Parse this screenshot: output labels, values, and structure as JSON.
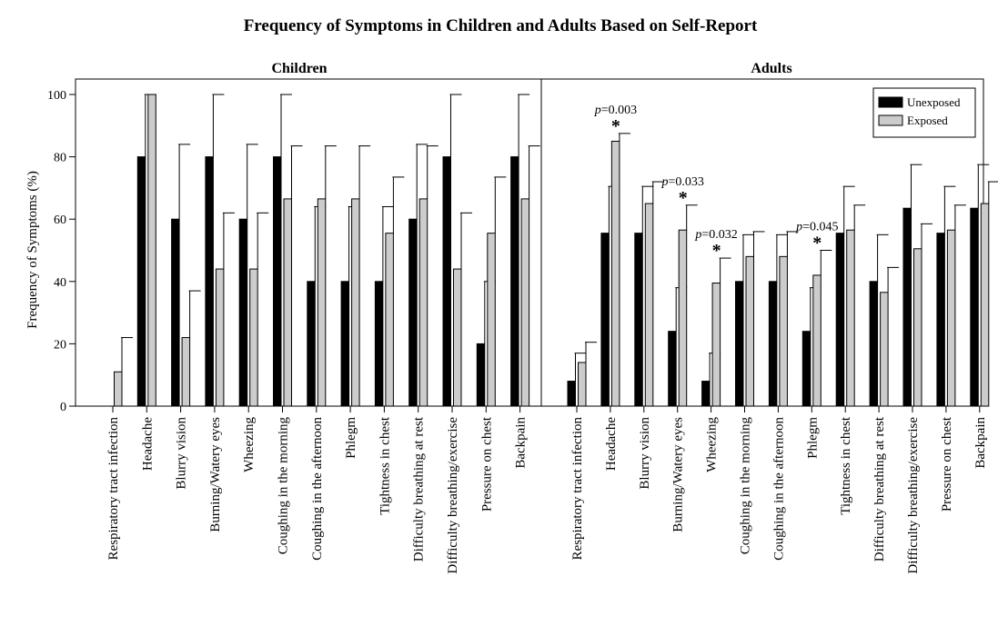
{
  "chart_data": {
    "type": "bar",
    "title": "Frequency of Symptoms in Children and Adults Based on Self-Report",
    "ylabel": "Frequency of Symptoms (%)",
    "ylim": [
      0,
      100
    ],
    "yticks": [
      "0",
      "20",
      "40",
      "60",
      "80",
      "100"
    ],
    "legend": {
      "placement": "top-right",
      "entries": [
        "Unexposed",
        "Exposed"
      ]
    },
    "colors": {
      "unexposed": "#000000",
      "exposed": "#cccccc"
    },
    "categories": [
      "Respiratory tract infection",
      "Headache",
      "Blurry vision",
      "Burning/Watery eyes",
      "Wheezing",
      "Coughing in the morning",
      "Coughing in the afternoon",
      "Phlegm",
      "Tightness in chest",
      "Difficulty breathing at rest",
      "Difficulty breathing/exercise",
      "Pressure on chest",
      "Backpain"
    ],
    "panels": [
      {
        "title": "Children",
        "series": [
          {
            "name": "Unexposed",
            "values": [
              0,
              80,
              60,
              80,
              60,
              80,
              40,
              40,
              40,
              60,
              80,
              20,
              80
            ],
            "errors": [
              0,
              100,
              84,
              100,
              84,
              100,
              64,
              64,
              64,
              84,
              100,
              40,
              100
            ]
          },
          {
            "name": "Exposed",
            "values": [
              11,
              100,
              22,
              44,
              44,
              66.5,
              66.5,
              66.5,
              55.5,
              66.5,
              44,
              55.5,
              66.5
            ],
            "errors": [
              22,
              100,
              37,
              62,
              62,
              83.5,
              83.5,
              83.5,
              73.5,
              83.5,
              62,
              73.5,
              83.5
            ]
          }
        ],
        "annotations": []
      },
      {
        "title": "Adults",
        "series": [
          {
            "name": "Unexposed",
            "values": [
              8,
              55.5,
              55.5,
              24,
              8,
              40,
              40,
              24,
              55.5,
              40,
              63.5,
              55.5,
              63.5
            ],
            "errors": [
              17,
              70.5,
              70.5,
              38,
              17,
              55,
              55,
              38,
              70.5,
              55,
              77.5,
              70.5,
              77.5
            ]
          },
          {
            "name": "Exposed",
            "values": [
              14,
              85,
              65,
              56.5,
              39.5,
              48,
              48,
              42,
              56.5,
              36.5,
              50.5,
              56.5,
              65
            ],
            "errors": [
              20.5,
              87.5,
              72,
              64.5,
              47.5,
              56,
              56,
              50,
              64.5,
              44.5,
              58.5,
              64.5,
              72
            ]
          }
        ],
        "annotations": [
          {
            "category": "Headache",
            "text": "p=0.003"
          },
          {
            "category": "Burning/Watery eyes",
            "text": "p=0.033"
          },
          {
            "category": "Wheezing",
            "text": "p=0.032"
          },
          {
            "category": "Phlegm",
            "text": "p=0.045"
          }
        ]
      }
    ]
  }
}
